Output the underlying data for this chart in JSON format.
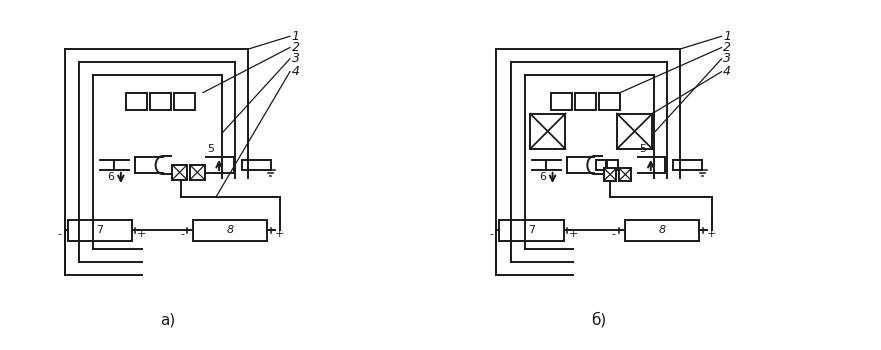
{
  "bg_color": "#ffffff",
  "line_color": "#1a1a1a",
  "label_a": "a)",
  "label_b": "б)",
  "lw": 1.4
}
